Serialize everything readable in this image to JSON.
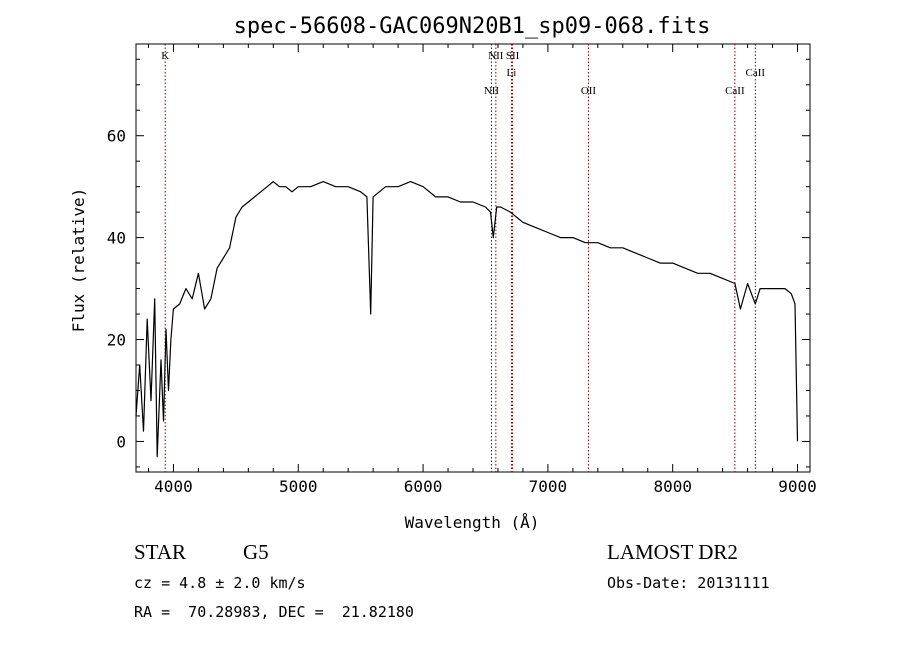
{
  "chart_data": {
    "type": "line",
    "title": "spec-56608-GAC069N20B1_sp09-068.fits",
    "xlabel": "Wavelength (Å)",
    "ylabel": "Flux (relative)",
    "xlim": [
      3700,
      9100
    ],
    "ylim": [
      -6,
      78
    ],
    "xticks": [
      4000,
      5000,
      6000,
      7000,
      8000,
      9000
    ],
    "yticks": [
      0,
      20,
      40,
      60
    ],
    "grid": false,
    "line_color": "#000000",
    "marker_color": "#8b0000",
    "spectrum": {
      "x": [
        3700,
        3730,
        3760,
        3790,
        3820,
        3850,
        3870,
        3900,
        3920,
        3940,
        3960,
        3980,
        4000,
        4050,
        4100,
        4150,
        4200,
        4250,
        4300,
        4350,
        4400,
        4450,
        4500,
        4550,
        4600,
        4650,
        4700,
        4750,
        4800,
        4850,
        4900,
        4950,
        5000,
        5100,
        5200,
        5300,
        5400,
        5500,
        5550,
        5580,
        5600,
        5650,
        5700,
        5800,
        5900,
        6000,
        6100,
        6200,
        6300,
        6400,
        6500,
        6540,
        6563,
        6590,
        6620,
        6700,
        6800,
        6900,
        7000,
        7100,
        7200,
        7300,
        7400,
        7500,
        7600,
        7700,
        7800,
        7900,
        8000,
        8100,
        8200,
        8300,
        8400,
        8498,
        8542,
        8600,
        8662,
        8700,
        8800,
        8900,
        8950,
        8980,
        9000
      ],
      "y": [
        5,
        15,
        2,
        24,
        8,
        28,
        -3,
        16,
        4,
        22,
        10,
        20,
        26,
        27,
        30,
        28,
        33,
        26,
        28,
        34,
        36,
        38,
        44,
        46,
        47,
        48,
        49,
        50,
        51,
        50,
        50,
        49,
        50,
        50,
        51,
        50,
        50,
        49,
        48,
        25,
        48,
        49,
        50,
        50,
        51,
        50,
        48,
        48,
        47,
        47,
        46,
        45,
        40,
        46,
        46,
        45,
        43,
        42,
        41,
        40,
        40,
        39,
        39,
        38,
        38,
        37,
        36,
        35,
        35,
        34,
        33,
        33,
        32,
        31,
        26,
        31,
        27,
        30,
        30,
        30,
        29,
        27,
        0
      ]
    },
    "features": [
      {
        "label": "K",
        "x": 3934,
        "row": "top"
      },
      {
        "label": "NII",
        "x": 6548,
        "row": "lower"
      },
      {
        "label": "NII",
        "x": 6583,
        "row": "top"
      },
      {
        "label": "SII",
        "x": 6717,
        "row": "top"
      },
      {
        "label": "Li",
        "x": 6708,
        "row": "mid"
      },
      {
        "label": "OII",
        "x": 7325,
        "row": "lower"
      },
      {
        "label": "CaII",
        "x": 8498,
        "row": "lower"
      },
      {
        "label": "CaII",
        "x": 8662,
        "row": "mid"
      }
    ]
  },
  "info": {
    "object_class": "STAR",
    "subclass": "G5",
    "survey": "LAMOST DR2",
    "cz": "cz = 4.8 ± 2.0 km/s",
    "obs_date": "Obs-Date: 20131111",
    "coords": "RA =  70.28983, DEC =  21.82180"
  }
}
